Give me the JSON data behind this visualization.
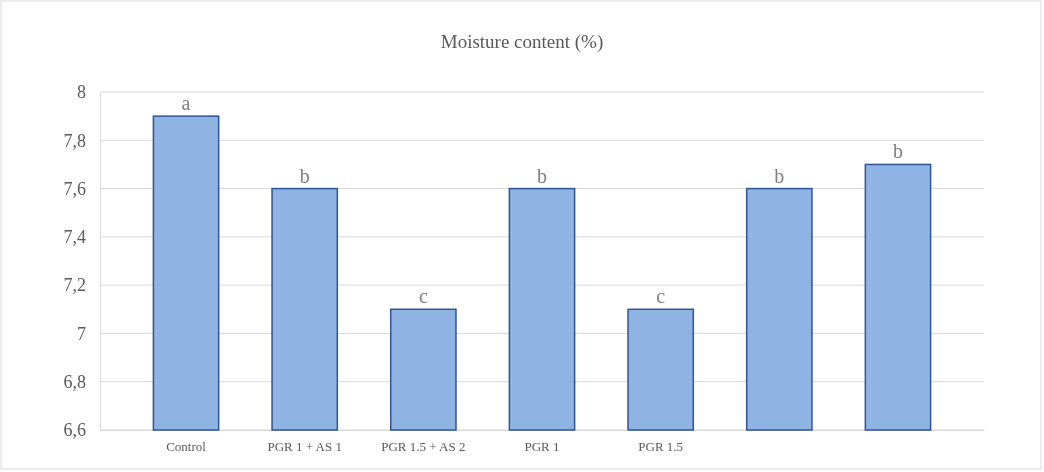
{
  "chart_data": {
    "type": "bar",
    "title": "Moisture content (%)",
    "categories": [
      "Control",
      "PGR 1 + AS 1",
      "PGR 1.5 + AS 2",
      "PGR 1",
      "PGR 1.5",
      null,
      null
    ],
    "values": [
      7.9,
      7.6,
      7.1,
      7.6,
      7.1,
      7.6,
      7.7
    ],
    "value_labels": [
      "a",
      "b",
      "c",
      "b",
      "c",
      "b",
      "b"
    ],
    "color": "#8fb4e3",
    "ylim": [
      6.6,
      8
    ],
    "yticks": [
      {
        "value": 6.6,
        "label": "6,6"
      },
      {
        "value": 6.8,
        "label": "6,8"
      },
      {
        "value": 7,
        "label": "7"
      },
      {
        "value": 7.2,
        "label": "7,2"
      },
      {
        "value": 7.4,
        "label": "7,4"
      },
      {
        "value": 7.6,
        "label": "7,6"
      },
      {
        "value": 7.8,
        "label": "7,8"
      },
      {
        "value": 8,
        "label": "8"
      }
    ],
    "grid": true
  }
}
